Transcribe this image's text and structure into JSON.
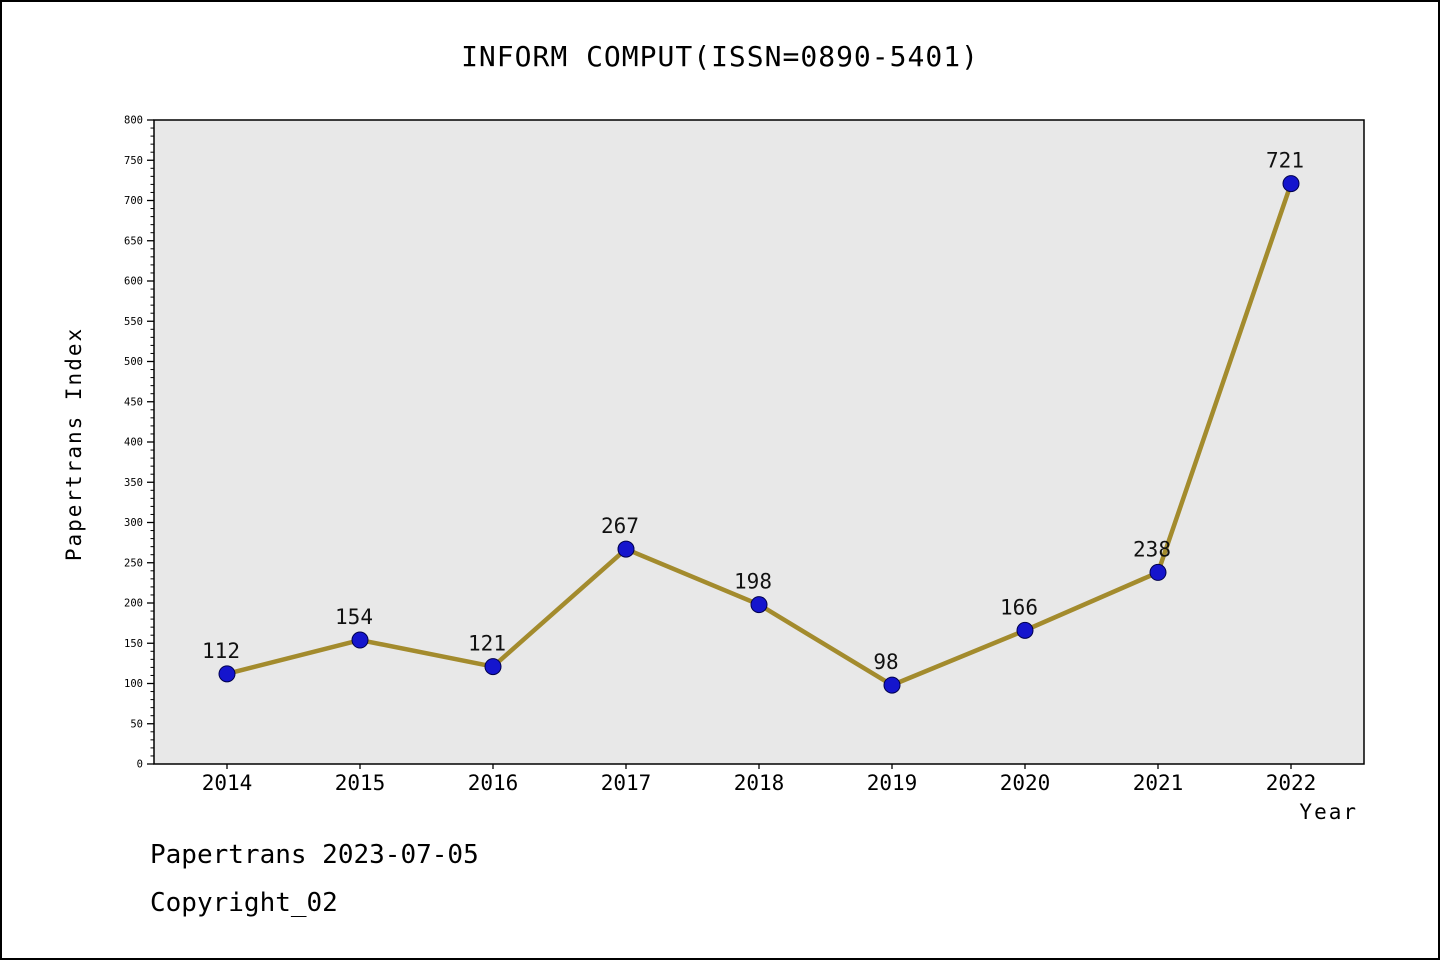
{
  "title": "INFORM COMPUT(ISSN=0890-5401)",
  "footer": {
    "line1": "Papertrans 2023-07-05",
    "line2": "Copyright_02"
  },
  "chart_data": {
    "type": "line",
    "categories": [
      "2014",
      "2015",
      "2016",
      "2017",
      "2018",
      "2019",
      "2020",
      "2021",
      "2022"
    ],
    "values": [
      112,
      154,
      121,
      267,
      198,
      98,
      166,
      238,
      721
    ],
    "title": "INFORM COMPUT(ISSN=0890-5401)",
    "xlabel": "Year",
    "ylabel": "Papertrans Index",
    "ylim": [
      0,
      800
    ],
    "y_major_step": 50,
    "y_minor_step": 10,
    "grid": false,
    "legend": false,
    "line_color": "#a38b2d",
    "marker_color": "#1515cd",
    "marker_edge_color": "#00004d",
    "plot_bg": "#e8e8e8",
    "axis_color": "#000000",
    "label_color": "#111111"
  }
}
